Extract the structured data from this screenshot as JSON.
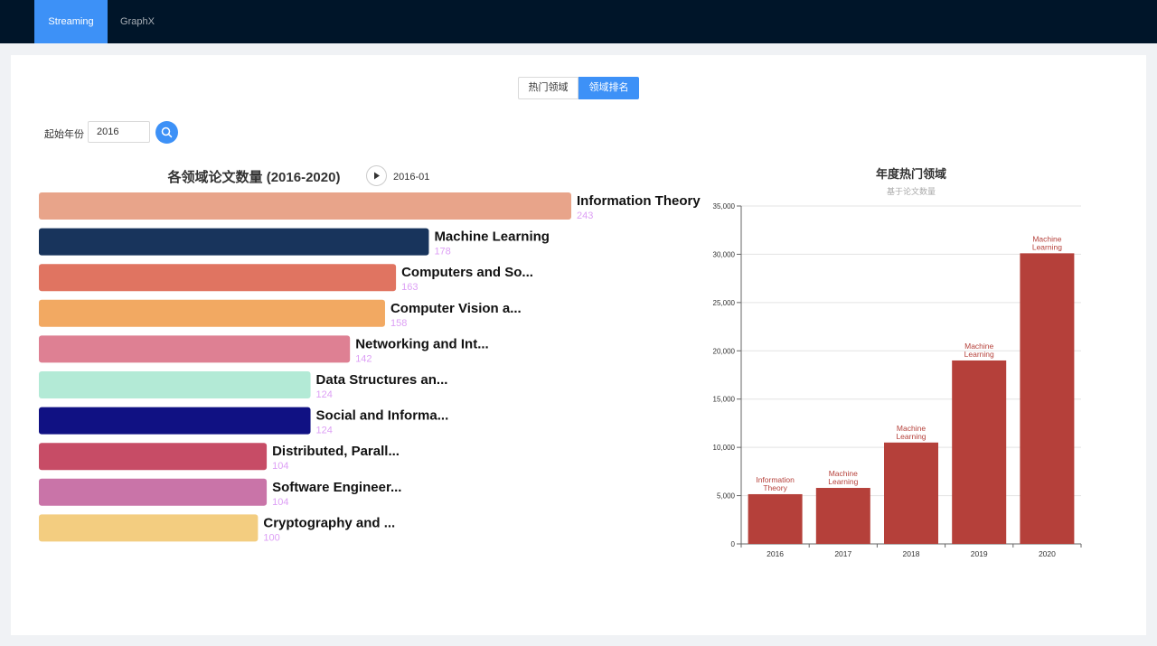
{
  "nav": {
    "items": [
      {
        "label": "Streaming",
        "active": true
      },
      {
        "label": "GraphX",
        "active": false
      }
    ]
  },
  "segmented": {
    "options": [
      {
        "label": "热门领域",
        "active": false
      },
      {
        "label": "领域排名",
        "active": true
      }
    ]
  },
  "filter": {
    "label": "起始年份",
    "year_value": "2016",
    "search_icon": "search-icon"
  },
  "colors": {
    "nav_bg": "#001529",
    "accent": "#3d91f7",
    "value_label": "#dda0f5",
    "bar_right": "#b5403a"
  },
  "chart_data": [
    {
      "type": "bar",
      "orientation": "horizontal",
      "title": "各领域论文数量 (2016-2020)",
      "timeline_label": "2016-01",
      "play_icon": "play-icon",
      "categories": [
        "Information Theory",
        "Machine Learning",
        "Computers and So...",
        "Computer Vision a...",
        "Networking and Int...",
        "Data Structures an...",
        "Social and Informa...",
        "Distributed, Parall...",
        "Software Engineer...",
        "Cryptography and ..."
      ],
      "values": [
        243,
        178,
        163,
        158,
        142,
        124,
        124,
        104,
        104,
        100
      ],
      "value_labels": [
        "243",
        "178",
        "163",
        "158",
        "142",
        "124",
        "124",
        "104",
        "104",
        "100"
      ],
      "bar_colors": [
        "#e8a48a",
        "#18345c",
        "#e07461",
        "#f2a962",
        "#de8093",
        "#b3ead6",
        "#101183",
        "#c74c66",
        "#c974a8",
        "#f3cd80"
      ]
    },
    {
      "type": "bar",
      "title": "年度热门领域",
      "subtitle": "基于论文数量",
      "categories": [
        "2016",
        "2017",
        "2018",
        "2019",
        "2020"
      ],
      "values": [
        5150,
        5800,
        10500,
        19000,
        30100
      ],
      "bar_labels": [
        [
          "Information",
          "Theory"
        ],
        [
          "Machine",
          "Learning"
        ],
        [
          "Machine",
          "Learning"
        ],
        [
          "Machine",
          "Learning"
        ],
        [
          "Machine",
          "Learning"
        ]
      ],
      "ylim": [
        0,
        35000
      ],
      "yticks": [
        0,
        5000,
        10000,
        15000,
        20000,
        25000,
        30000,
        35000
      ],
      "ytick_labels": [
        "0",
        "5,000",
        "10,000",
        "15,000",
        "20,000",
        "25,000",
        "30,000",
        "35,000"
      ],
      "grid": true
    }
  ]
}
